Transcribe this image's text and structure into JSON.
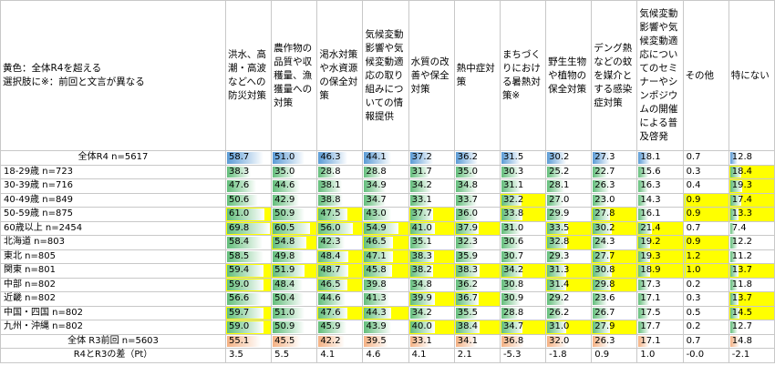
{
  "note_lines": [
    "黄色：全体R4を超える",
    "選択肢に※：前回と文言が異なる"
  ],
  "highlight_color": "#ffff00",
  "columns": [
    "洪水、高潮・高波などへの防災対策",
    "農作物の品質や収穫量、漁獲量への対策",
    "渇水対策や水資源の保全対策",
    "気候変動影響や気候変動適応の取り組みについての情報提供",
    "水質の改善や保全対策",
    "熱中症対策",
    "まちづくりにおける暑熱対策※",
    "野生生物や植物の保全対策",
    "デング熱などの蚊を媒介とする感染症対策",
    "気候変動影響や気候変動適応についてのセミナーやシンポジウムの開催による普及啓発",
    "その他",
    "特にない"
  ],
  "rows": [
    {
      "label": "全体R4 n=5617",
      "kind": "total",
      "bar_color": "#5b9bd5",
      "values": [
        58.7,
        51.0,
        46.3,
        44.1,
        37.2,
        36.2,
        31.5,
        30.2,
        27.3,
        18.1,
        0.7,
        12.8
      ],
      "value_labels": [
        "58.7",
        "51.0",
        "46.3",
        "44.1",
        "37.2",
        "36.2",
        "31.5",
        "30.2",
        "27.3",
        "18.1",
        "0.7",
        "12.8"
      ]
    },
    {
      "label": "18-29歳 n=723",
      "kind": "group",
      "bar_color": "#63be7b",
      "values": [
        38.3,
        35.0,
        28.8,
        28.8,
        31.7,
        35.0,
        30.3,
        25.2,
        22.7,
        15.6,
        0.3,
        18.4
      ],
      "value_labels": [
        "38.3",
        "35.0",
        "28.8",
        "28.8",
        "31.7",
        "35.0",
        "30.3",
        "25.2",
        "22.7",
        "15.6",
        "0.3",
        "18.4"
      ]
    },
    {
      "label": "30-39歳 n=716",
      "kind": "group",
      "bar_color": "#63be7b",
      "values": [
        47.6,
        44.6,
        38.1,
        34.9,
        34.2,
        34.8,
        31.1,
        28.1,
        26.3,
        16.3,
        0.4,
        19.3
      ],
      "value_labels": [
        "47.6",
        "44.6",
        "38.1",
        "34.9",
        "34.2",
        "34.8",
        "31.1",
        "28.1",
        "26.3",
        "16.3",
        "0.4",
        "19.3"
      ]
    },
    {
      "label": "40-49歳 n=849",
      "kind": "group",
      "bar_color": "#63be7b",
      "values": [
        50.6,
        42.9,
        38.8,
        34.7,
        33.1,
        33.7,
        32.2,
        27.0,
        23.0,
        14.3,
        0.9,
        17.4
      ],
      "value_labels": [
        "50.6",
        "42.9",
        "38.8",
        "34.7",
        "33.1",
        "33.7",
        "32.2",
        "27.0",
        "23.0",
        "14.3",
        "0.9",
        "17.4"
      ]
    },
    {
      "label": "50-59歳 n=875",
      "kind": "group",
      "bar_color": "#63be7b",
      "values": [
        61.0,
        50.9,
        47.5,
        43.0,
        37.7,
        36.0,
        33.8,
        29.9,
        27.8,
        16.1,
        0.9,
        13.3
      ],
      "value_labels": [
        "61.0",
        "50.9",
        "47.5",
        "43.0",
        "37.7",
        "36.0",
        "33.8",
        "29.9",
        "27.8",
        "16.1",
        "0.9",
        "13.3"
      ]
    },
    {
      "label": "60歳以上 n=2454",
      "kind": "group",
      "bar_color": "#63be7b",
      "values": [
        69.8,
        60.5,
        56.0,
        54.9,
        41.0,
        37.9,
        31.0,
        33.5,
        30.2,
        21.4,
        0.7,
        7.4
      ],
      "value_labels": [
        "69.8",
        "60.5",
        "56.0",
        "54.9",
        "41.0",
        "37.9",
        "31.0",
        "33.5",
        "30.2",
        "21.4",
        "0.7",
        "7.4"
      ]
    },
    {
      "label": "北海道 n=803",
      "kind": "group",
      "bar_color": "#63be7b",
      "values": [
        58.4,
        54.8,
        42.3,
        46.5,
        35.1,
        32.3,
        30.6,
        32.8,
        24.3,
        19.2,
        0.9,
        12.2
      ],
      "value_labels": [
        "58.4",
        "54.8",
        "42.3",
        "46.5",
        "35.1",
        "32.3",
        "30.6",
        "32.8",
        "24.3",
        "19.2",
        "0.9",
        "12.2"
      ]
    },
    {
      "label": "東北 n=805",
      "kind": "group",
      "bar_color": "#63be7b",
      "values": [
        58.5,
        49.8,
        48.4,
        47.1,
        38.3,
        35.9,
        30.7,
        29.3,
        27.7,
        19.3,
        1.2,
        11.2
      ],
      "value_labels": [
        "58.5",
        "49.8",
        "48.4",
        "47.1",
        "38.3",
        "35.9",
        "30.7",
        "29.3",
        "27.7",
        "19.3",
        "1.2",
        "11.2"
      ]
    },
    {
      "label": "関東 n=801",
      "kind": "group",
      "bar_color": "#63be7b",
      "values": [
        59.4,
        51.9,
        48.7,
        45.8,
        38.2,
        38.3,
        34.2,
        31.3,
        30.8,
        18.9,
        1.0,
        13.7
      ],
      "value_labels": [
        "59.4",
        "51.9",
        "48.7",
        "45.8",
        "38.2",
        "38.3",
        "34.2",
        "31.3",
        "30.8",
        "18.9",
        "1.0",
        "13.7"
      ]
    },
    {
      "label": "中部 n=802",
      "kind": "group",
      "bar_color": "#63be7b",
      "values": [
        59.0,
        48.4,
        46.5,
        39.8,
        34.8,
        36.2,
        30.8,
        31.4,
        29.8,
        17.3,
        0.2,
        11.8
      ],
      "value_labels": [
        "59.0",
        "48.4",
        "46.5",
        "39.8",
        "34.8",
        "36.2",
        "30.8",
        "31.4",
        "29.8",
        "17.3",
        "0.2",
        "11.8"
      ]
    },
    {
      "label": "近畿 n=802",
      "kind": "group",
      "bar_color": "#63be7b",
      "values": [
        56.6,
        50.4,
        44.6,
        41.3,
        39.9,
        36.7,
        30.9,
        29.2,
        23.6,
        17.1,
        0.3,
        13.7
      ],
      "value_labels": [
        "56.6",
        "50.4",
        "44.6",
        "41.3",
        "39.9",
        "36.7",
        "30.9",
        "29.2",
        "23.6",
        "17.1",
        "0.3",
        "13.7"
      ]
    },
    {
      "label": "中国・四国 n=802",
      "kind": "group",
      "bar_color": "#63be7b",
      "values": [
        59.7,
        51.0,
        47.6,
        44.3,
        34.2,
        35.5,
        28.8,
        26.2,
        26.7,
        17.5,
        0.5,
        14.5
      ],
      "value_labels": [
        "59.7",
        "51.0",
        "47.6",
        "44.3",
        "34.2",
        "35.5",
        "28.8",
        "26.2",
        "26.7",
        "17.5",
        "0.5",
        "14.5"
      ]
    },
    {
      "label": "九州・沖縄 n=802",
      "kind": "group",
      "bar_color": "#63be7b",
      "values": [
        59.0,
        50.9,
        45.9,
        43.9,
        40.0,
        38.4,
        34.7,
        31.0,
        27.9,
        17.7,
        0.2,
        12.7
      ],
      "value_labels": [
        "59.0",
        "50.9",
        "45.9",
        "43.9",
        "40.0",
        "38.4",
        "34.7",
        "31.0",
        "27.9",
        "17.7",
        "0.2",
        "12.7"
      ]
    },
    {
      "label": "全体 R3前回 n=5603",
      "kind": "total",
      "bar_color": "#f4b183",
      "values": [
        55.1,
        45.5,
        42.2,
        39.5,
        33.1,
        34.1,
        36.8,
        32.0,
        26.3,
        17.1,
        0.7,
        14.8
      ],
      "value_labels": [
        "55.1",
        "45.5",
        "42.2",
        "39.5",
        "33.1",
        "34.1",
        "36.8",
        "32.0",
        "26.3",
        "17.1",
        "0.7",
        "14.8"
      ]
    }
  ],
  "diff_row": {
    "label": "R4とR3の差（Pt）",
    "cells": [
      "3.5",
      "5.5",
      "4.1",
      "4.6",
      "4.1",
      "2.1",
      "-5.3",
      "-1.8",
      "0.9",
      "1.0",
      "-0.0",
      "-2.1"
    ]
  }
}
